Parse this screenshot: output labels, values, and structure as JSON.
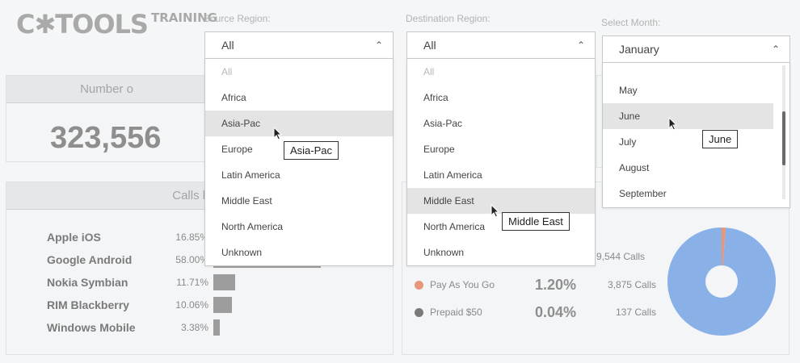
{
  "logo": {
    "main": "C✱TOOLS",
    "sub": "TRAINING"
  },
  "kpi": {
    "header": "Number o",
    "value": "323,556"
  },
  "devices": {
    "header": "Calls by P",
    "rows": [
      {
        "name": "Apple iOS",
        "pct": "16.85%",
        "fraction": 0.1685
      },
      {
        "name": "Google Android",
        "pct": "58.00%",
        "fraction": 0.58
      },
      {
        "name": "Nokia Symbian",
        "pct": "11.71%",
        "fraction": 0.1171
      },
      {
        "name": "RIM Blackberry",
        "pct": "10.06%",
        "fraction": 0.1006
      },
      {
        "name": "Windows Mobile",
        "pct": "3.38%",
        "fraction": 0.0338
      }
    ]
  },
  "plans": {
    "top_calls": "9,544 Calls",
    "rows": [
      {
        "name": "Pay As You Go",
        "pct": "1.20%",
        "calls": "3,875 Calls",
        "color": "#e8967a"
      },
      {
        "name": "Prepaid $50",
        "pct": "0.04%",
        "calls": "137 Calls",
        "color": "#7a7a7a"
      }
    ]
  },
  "donut": {
    "main_color": "#8ab0e8",
    "accent_color": "#e8967a",
    "accent_fraction": 0.012
  },
  "source": {
    "label": "Source Region:",
    "value": "All",
    "options": [
      "All",
      "Africa",
      "Asia-Pac",
      "Europe",
      "Latin America",
      "Middle East",
      "North America",
      "Unknown"
    ],
    "highlighted": "Asia-Pac",
    "tooltip": "Asia-Pac"
  },
  "destination": {
    "label": "Destination Region:",
    "value": "All",
    "options": [
      "All",
      "Africa",
      "Asia-Pac",
      "Europe",
      "Latin America",
      "Middle East",
      "North America",
      "Unknown"
    ],
    "highlighted": "Middle East",
    "tooltip": "Middle East"
  },
  "month": {
    "label": "Select Month:",
    "value": "January",
    "options": [
      "May",
      "June",
      "July",
      "August",
      "September"
    ],
    "highlighted": "June",
    "tooltip": "June"
  }
}
